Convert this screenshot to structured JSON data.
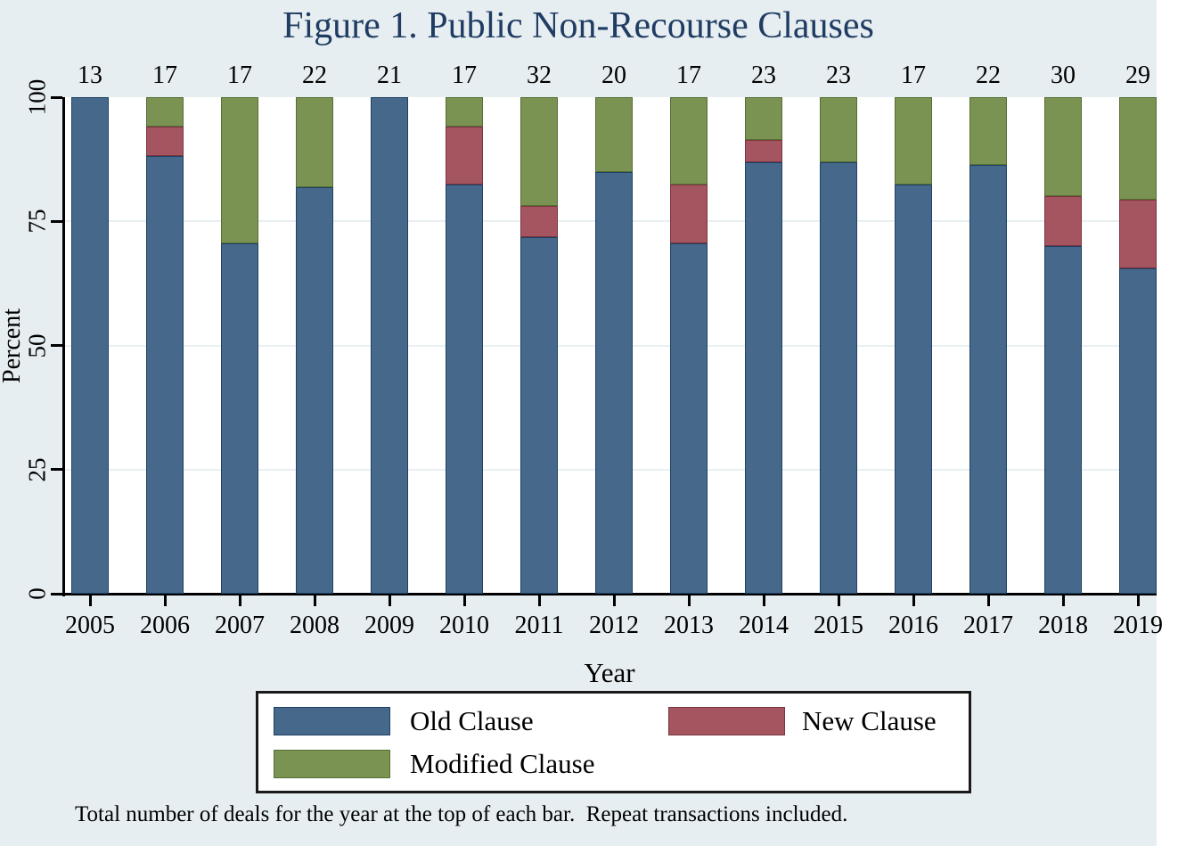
{
  "figure": {
    "title": "Figure 1. Public Non-Recourse Clauses",
    "footnote": "Total number of deals for the year at the top of each bar.  Repeat transactions included."
  },
  "axes": {
    "y_title": "Percent",
    "x_title": "Year"
  },
  "legend": {
    "items": [
      {
        "label": "Old Clause",
        "fill": "#46688B",
        "border": "#1E4165"
      },
      {
        "label": "New Clause",
        "fill": "#A5555F",
        "border": "#7A353F"
      },
      {
        "label": "Modified Clause",
        "fill": "#7A9252",
        "border": "#566F33"
      }
    ]
  },
  "colors": {
    "page_background": "#E7EEF1",
    "plot_background": "#FFFFFF",
    "gridline": "#E8F0F2",
    "axis": "#000000",
    "title_text": "#1F3C63",
    "label_text": "#000000"
  },
  "chart_data": {
    "type": "bar",
    "stacked": true,
    "title": "Figure 1. Public Non-Recourse Clauses",
    "xlabel": "Year",
    "ylabel": "Percent",
    "ylim": [
      0,
      100
    ],
    "y_ticks": [
      0,
      25,
      50,
      75,
      100
    ],
    "gridlines_at": [
      25,
      50,
      75
    ],
    "legend_position": "bottom",
    "annotation": "Total number of deals for the year shown at the top of each bar",
    "categories": [
      "2005",
      "2006",
      "2007",
      "2008",
      "2009",
      "2010",
      "2011",
      "2012",
      "2013",
      "2014",
      "2015",
      "2016",
      "2017",
      "2018",
      "2019"
    ],
    "totals_per_year": [
      13,
      17,
      17,
      22,
      21,
      17,
      32,
      20,
      17,
      23,
      23,
      17,
      22,
      30,
      29
    ],
    "series": [
      {
        "name": "Old Clause",
        "values_pct": [
          100,
          88.24,
          70.59,
          81.82,
          100,
          82.35,
          71.87,
          85,
          70.59,
          86.96,
          86.96,
          82.35,
          86.36,
          70,
          65.52
        ]
      },
      {
        "name": "New Clause",
        "values_pct": [
          0,
          5.88,
          0,
          0,
          0,
          11.77,
          6.25,
          0,
          11.76,
          4.35,
          0,
          0,
          0,
          10,
          13.79
        ]
      },
      {
        "name": "Modified Clause",
        "values_pct": [
          0,
          5.88,
          29.41,
          18.18,
          0,
          5.88,
          21.88,
          15,
          17.65,
          8.69,
          13.04,
          17.65,
          13.64,
          20,
          20.69
        ]
      }
    ]
  }
}
